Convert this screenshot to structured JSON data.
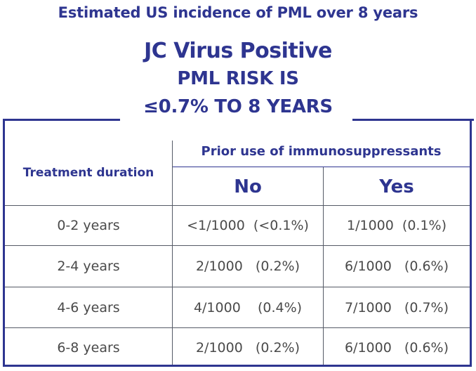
{
  "caption": "Estimated US incidence of PML over 8 years",
  "heading": {
    "line1": "JC Virus Positive",
    "line2": "PML RISK IS",
    "line3": "≤0.7% TO 8 YEARS"
  },
  "table": {
    "row_header": "Treatment duration",
    "group_header": "Prior use of immunosuppressants",
    "col_no": "No",
    "col_yes": "Yes",
    "rows": [
      {
        "duration": "0-2 years",
        "no": "<1/1000  (<0.1%)",
        "yes": "1/1000  (0.1%)"
      },
      {
        "duration": "2-4 years",
        "no": "2/1000   (0.2%)",
        "yes": "6/1000   (0.6%)"
      },
      {
        "duration": "4-6 years",
        "no": "4/1000    (0.4%)",
        "yes": "7/1000   (0.7%)"
      },
      {
        "duration": "6-8 years",
        "no": "2/1000   (0.2%)",
        "yes": "6/1000   (0.6%)"
      }
    ]
  },
  "colors": {
    "accent": "#2e3590",
    "body_text": "#4a4a4a"
  }
}
